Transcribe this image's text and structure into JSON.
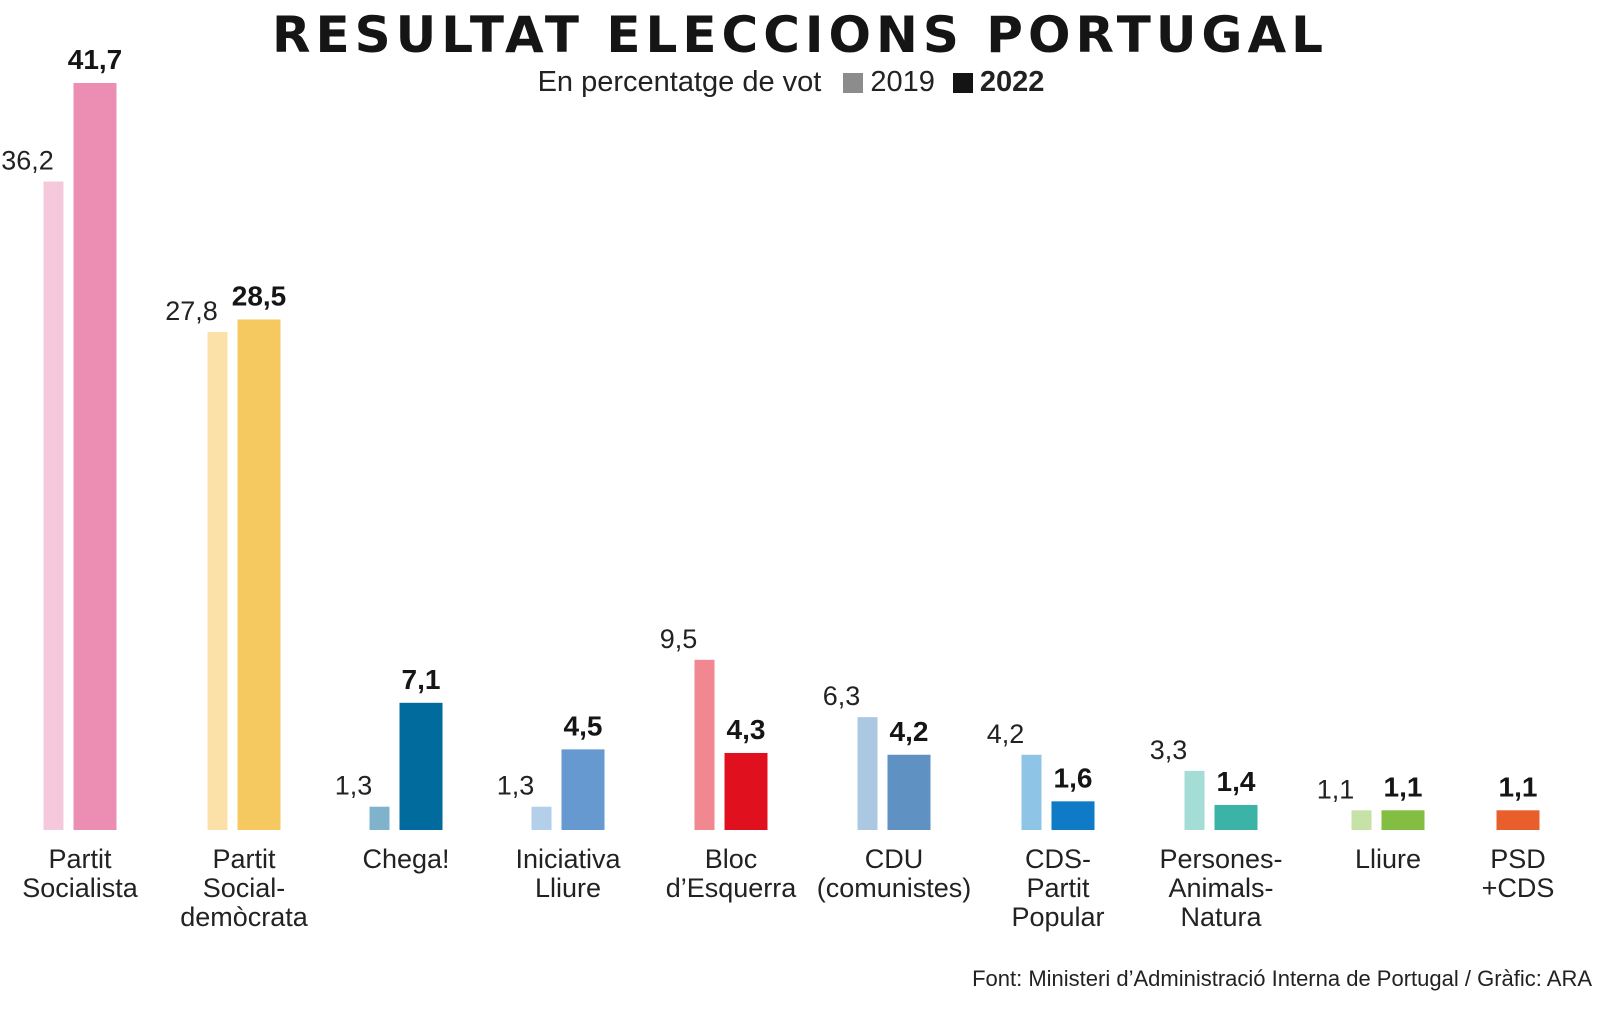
{
  "chart_data": {
    "type": "bar",
    "title": "RESULTAT ELECCIONS PORTUGAL",
    "subtitle": "En percentatge de vot",
    "legend": [
      {
        "name": "2019",
        "color": "#8c8c8c"
      },
      {
        "name": "2022",
        "color": "#141414"
      }
    ],
    "categories": [
      "Partit\nSocialista",
      "Partit\nSocial-\ndemòcrata",
      "Chega!",
      "Iniciativa\nLliure",
      "Bloc\nd’Esquerra",
      "CDU\n(comunistes)",
      "CDS-\nPartit\nPopular",
      "Persones-\nAnimals-\nNatura",
      "Lliure",
      "PSD\n+CDS"
    ],
    "series": [
      {
        "name": "2019",
        "values": [
          36.2,
          27.8,
          1.3,
          1.3,
          9.5,
          6.3,
          4.2,
          3.3,
          1.1,
          null
        ],
        "labels": [
          "36,2",
          "27,8",
          "1,3",
          "1,3",
          "9,5",
          "6,3",
          "4,2",
          "3,3",
          "1,1",
          null
        ],
        "colors": [
          "#f5c9db",
          "#fbe1a8",
          "#7fb3cc",
          "#b3cfe9",
          "#f18791",
          "#abc8e3",
          "#8ec5e6",
          "#a4ddd5",
          "#c7e2a7",
          null
        ]
      },
      {
        "name": "2022",
        "values": [
          41.7,
          28.5,
          7.1,
          4.5,
          4.3,
          4.2,
          1.6,
          1.4,
          1.1,
          1.1
        ],
        "labels": [
          "41,7",
          "28,5",
          "7,1",
          "4,5",
          "4,3",
          "4,2",
          "1,6",
          "1,4",
          "1,1",
          "1,1"
        ],
        "colors": [
          "#ec8eb4",
          "#f6c860",
          "#006b9c",
          "#6599d0",
          "#e0101e",
          "#5f92c3",
          "#0f7ac6",
          "#3bb3a7",
          "#83be42",
          "#e95f2b"
        ]
      }
    ],
    "ylim": [
      0,
      41.7
    ],
    "grid": false
  },
  "source": "Font: Ministeri d’Administració Interna de Portugal / Gràfic: ARA"
}
